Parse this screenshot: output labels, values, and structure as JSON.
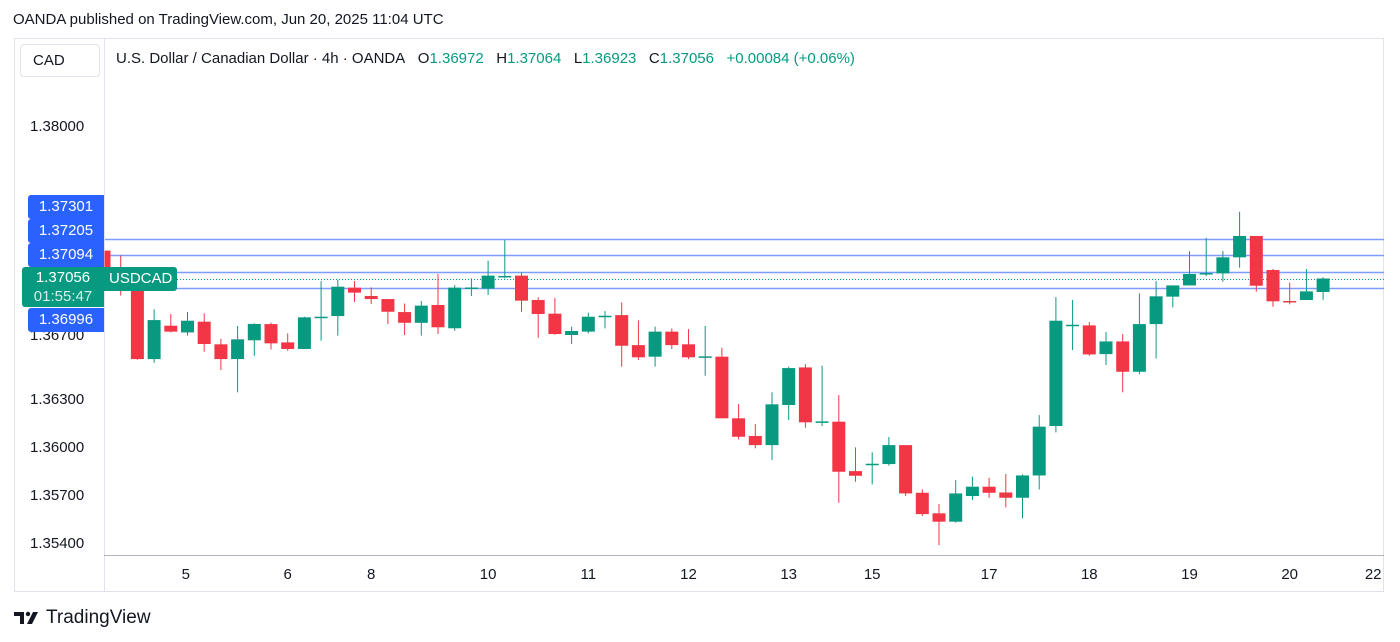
{
  "publish_line": "OANDA published on TradingView.com, Jun 20, 2025 11:04 UTC",
  "currency_button": "CAD",
  "legend": {
    "title": "U.S. Dollar / Canadian Dollar · 4h · OANDA",
    "o_label": "O",
    "o": "1.36972",
    "h_label": "H",
    "h": "1.37064",
    "l_label": "L",
    "l": "1.36923",
    "c_label": "C",
    "c": "1.37056",
    "change": "+0.00084 (+0.06%)"
  },
  "logo_text": "TradingView",
  "colors": {
    "up": "#089981",
    "down": "#f23645",
    "level_label": "#2962ff",
    "level_line": "#7f9dff"
  },
  "chart_data": {
    "type": "candlestick",
    "symbol": "USDCAD",
    "timeframe": "4h",
    "ylim": [
      1.3526,
      1.3827
    ],
    "y_ticks": [
      "1.38000",
      "1.36700",
      "1.36300",
      "1.36000",
      "1.35700",
      "1.35400"
    ],
    "x_ticks": [
      {
        "label": "5",
        "candle": 4.9
      },
      {
        "label": "6",
        "candle": 11
      },
      {
        "label": "8",
        "candle": 16
      },
      {
        "label": "10",
        "candle": 23
      },
      {
        "label": "11",
        "candle": 29
      },
      {
        "label": "12",
        "candle": 35
      },
      {
        "label": "13",
        "candle": 41
      },
      {
        "label": "15",
        "candle": 46
      },
      {
        "label": "17",
        "candle": 53
      },
      {
        "label": "18",
        "candle": 59
      },
      {
        "label": "19",
        "candle": 65
      },
      {
        "label": "20",
        "candle": 71
      },
      {
        "label": "22",
        "candle": 76
      }
    ],
    "horizontal_levels": [
      "1.37301",
      "1.37205",
      "1.37094",
      "1.36996"
    ],
    "current_price": "1.37056",
    "countdown": "01:55:47",
    "ohlc": [
      [
        1.3723,
        1.3723,
        1.37,
        1.37
      ],
      [
        1.3708,
        1.372,
        1.3695,
        1.37
      ],
      [
        1.3698,
        1.37,
        1.3655,
        1.36554
      ],
      [
        1.36554,
        1.36864,
        1.36531,
        1.36797
      ],
      [
        1.36762,
        1.36835,
        1.3672,
        1.36725
      ],
      [
        1.3672,
        1.36847,
        1.367,
        1.36793
      ],
      [
        1.36787,
        1.36839,
        1.366,
        1.36648
      ],
      [
        1.36646,
        1.3668,
        1.36486,
        1.36554
      ],
      [
        1.36554,
        1.3676,
        1.36347,
        1.36677
      ],
      [
        1.36671,
        1.36777,
        1.36575,
        1.36773
      ],
      [
        1.36772,
        1.36781,
        1.36614,
        1.36652
      ],
      [
        1.36658,
        1.36714,
        1.36606,
        1.36617
      ],
      [
        1.36617,
        1.36818,
        1.36617,
        1.36814
      ],
      [
        1.36814,
        1.3704,
        1.36669,
        1.36818
      ],
      [
        1.36822,
        1.37047,
        1.367,
        1.37005
      ],
      [
        1.36999,
        1.3704,
        1.3691,
        1.36968
      ],
      [
        1.36947,
        1.37001,
        1.36897,
        1.36928
      ],
      [
        1.36928,
        1.36928,
        1.36772,
        1.36849
      ],
      [
        1.36847,
        1.369,
        1.36704,
        1.3678
      ],
      [
        1.3678,
        1.36916,
        1.367,
        1.36887
      ],
      [
        1.36891,
        1.37084,
        1.3671,
        1.36752
      ],
      [
        1.36746,
        1.37015,
        1.3673,
        1.36999
      ],
      [
        1.36995,
        1.37057,
        1.36947,
        1.37
      ],
      [
        1.36993,
        1.37167,
        1.36953,
        1.37074
      ],
      [
        1.3707,
        1.37296,
        1.37057,
        1.37072
      ],
      [
        1.37074,
        1.37094,
        1.36849,
        1.36918
      ],
      [
        1.36922,
        1.36939,
        1.36687,
        1.36835
      ],
      [
        1.36837,
        1.36936,
        1.36706,
        1.3671
      ],
      [
        1.36704,
        1.36756,
        1.36648,
        1.36729
      ],
      [
        1.36725,
        1.36843,
        1.36714,
        1.36818
      ],
      [
        1.36818,
        1.36853,
        1.36745,
        1.36824
      ],
      [
        1.36828,
        1.36907,
        1.36507,
        1.36637
      ],
      [
        1.36641,
        1.36795,
        1.36548,
        1.36565
      ],
      [
        1.36569,
        1.36756,
        1.36507,
        1.36725
      ],
      [
        1.36725,
        1.36745,
        1.36617,
        1.36641
      ],
      [
        1.36646,
        1.36741,
        1.36554,
        1.36565
      ],
      [
        1.36569,
        1.3676,
        1.3645,
        1.36571
      ],
      [
        1.36569,
        1.36625,
        1.36185,
        1.36185
      ],
      [
        1.36185,
        1.36274,
        1.36054,
        1.3607
      ],
      [
        1.36075,
        1.3615,
        1.35998,
        1.36018
      ],
      [
        1.36018,
        1.36347,
        1.35925,
        1.36272
      ],
      [
        1.36268,
        1.36507,
        1.36174,
        1.36498
      ],
      [
        1.36502,
        1.36523,
        1.36126,
        1.3616
      ],
      [
        1.36164,
        1.36513,
        1.36137,
        1.36166
      ],
      [
        1.36164,
        1.3633,
        1.35659,
        1.35852
      ],
      [
        1.35856,
        1.36004,
        1.3579,
        1.35827
      ],
      [
        1.35898,
        1.35973,
        1.35773,
        1.35902
      ],
      [
        1.359,
        1.36068,
        1.3589,
        1.36018
      ],
      [
        1.36018,
        1.36018,
        1.35701,
        1.35717
      ],
      [
        1.35721,
        1.35742,
        1.35576,
        1.35588
      ],
      [
        1.35593,
        1.35651,
        1.35395,
        1.35541
      ],
      [
        1.35541,
        1.358,
        1.35535,
        1.35717
      ],
      [
        1.35701,
        1.35821,
        1.35676,
        1.35759
      ],
      [
        1.35759,
        1.35815,
        1.3569,
        1.35721
      ],
      [
        1.35723,
        1.35838,
        1.3563,
        1.3569
      ],
      [
        1.3569,
        1.35836,
        1.35562,
        1.35829
      ],
      [
        1.35829,
        1.36205,
        1.35742,
        1.36133
      ],
      [
        1.36137,
        1.3694,
        1.36097,
        1.36793
      ],
      [
        1.36764,
        1.36922,
        1.3661,
        1.36768
      ],
      [
        1.36764,
        1.36785,
        1.36575,
        1.36583
      ],
      [
        1.36585,
        1.36723,
        1.36517,
        1.36664
      ],
      [
        1.36664,
        1.3671,
        1.36347,
        1.36475
      ],
      [
        1.36475,
        1.36963,
        1.3646,
        1.36772
      ],
      [
        1.36772,
        1.3704,
        1.36558,
        1.36945
      ],
      [
        1.36943,
        1.37013,
        1.36876,
        1.37013
      ],
      [
        1.37013,
        1.37227,
        1.37013,
        1.37084
      ],
      [
        1.37086,
        1.3731,
        1.37071,
        1.3709
      ],
      [
        1.37088,
        1.37227,
        1.37036,
        1.37188
      ],
      [
        1.37188,
        1.37472,
        1.37123,
        1.37321
      ],
      [
        1.37321,
        1.37321,
        1.36974,
        1.37011
      ],
      [
        1.37109,
        1.37115,
        1.3688,
        1.36914
      ],
      [
        1.36916,
        1.3703,
        1.36895,
        1.36912
      ],
      [
        1.36922,
        1.37115,
        1.36922,
        1.36976
      ],
      [
        1.36972,
        1.37064,
        1.36923,
        1.37056
      ]
    ]
  }
}
